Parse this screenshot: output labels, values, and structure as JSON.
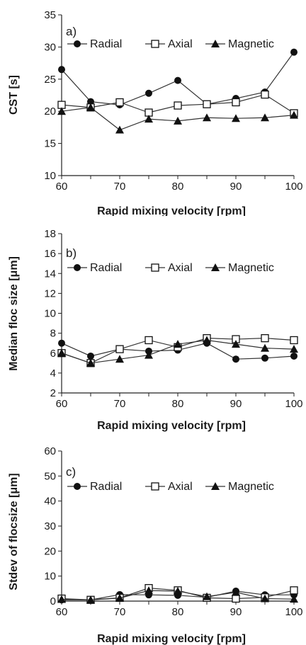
{
  "chart_data": [
    {
      "type": "line",
      "panel_label": "a)",
      "xlabel": "Rapid mixing velocity [rpm]",
      "ylabel": "CST [s]",
      "xlim": [
        60,
        100
      ],
      "ylim": [
        10,
        35
      ],
      "x_ticks": [
        "60",
        "70",
        "80",
        "90",
        "100"
      ],
      "y_ticks": [
        "10",
        "15",
        "20",
        "25",
        "30",
        "35"
      ],
      "legend_position": "top",
      "grid": false,
      "x": [
        60,
        65,
        70,
        75,
        80,
        85,
        90,
        95,
        100
      ],
      "series": [
        {
          "name": "Radial",
          "marker": "filled-circle",
          "values": [
            26.5,
            21.5,
            21.0,
            22.8,
            24.8,
            21.1,
            22.0,
            23.0,
            29.2
          ]
        },
        {
          "name": "Axial",
          "marker": "open-square",
          "values": [
            21.0,
            20.6,
            21.4,
            19.8,
            20.9,
            21.1,
            21.4,
            22.6,
            19.7
          ]
        },
        {
          "name": "Magnetic",
          "marker": "filled-triangle",
          "values": [
            20.0,
            20.6,
            17.1,
            18.8,
            18.5,
            19.0,
            18.9,
            19.0,
            19.4
          ]
        }
      ]
    },
    {
      "type": "line",
      "panel_label": "b)",
      "xlabel": "Rapid mixing velocity [rpm]",
      "ylabel": "Median floc size [μm]",
      "xlim": [
        60,
        100
      ],
      "ylim": [
        2,
        18
      ],
      "x_ticks": [
        "60",
        "70",
        "80",
        "90",
        "100"
      ],
      "y_ticks": [
        "2",
        "4",
        "6",
        "8",
        "10",
        "12",
        "14",
        "16",
        "18"
      ],
      "legend_position": "top",
      "grid": false,
      "x": [
        60,
        65,
        70,
        75,
        80,
        85,
        90,
        95,
        100
      ],
      "series": [
        {
          "name": "Radial",
          "marker": "filled-circle",
          "values": [
            7.0,
            5.7,
            6.4,
            6.2,
            6.3,
            7.0,
            5.4,
            5.5,
            5.7
          ]
        },
        {
          "name": "Axial",
          "marker": "open-square",
          "values": [
            6.0,
            5.0,
            6.4,
            7.3,
            6.6,
            7.5,
            7.4,
            7.5,
            7.3
          ]
        },
        {
          "name": "Magnetic",
          "marker": "filled-triangle",
          "values": [
            6.0,
            5.0,
            5.4,
            5.8,
            6.9,
            7.3,
            6.9,
            6.5,
            6.4
          ]
        }
      ]
    },
    {
      "type": "line",
      "panel_label": "c)",
      "xlabel": "Rapid mixing velocity [rpm]",
      "ylabel": "Stdev of flocsize [μm]",
      "xlim": [
        60,
        100
      ],
      "ylim": [
        0,
        60
      ],
      "x_ticks": [
        "60",
        "70",
        "80",
        "90",
        "100"
      ],
      "y_ticks": [
        "0",
        "10",
        "20",
        "30",
        "40",
        "50",
        "60"
      ],
      "legend_position": "top",
      "grid": false,
      "x": [
        60,
        65,
        70,
        75,
        80,
        85,
        90,
        95,
        100
      ],
      "series": [
        {
          "name": "Radial",
          "marker": "filled-circle",
          "values": [
            0.5,
            0.5,
            2.6,
            2.5,
            2.3,
            1.5,
            4.0,
            2.5,
            2.5
          ]
        },
        {
          "name": "Axial",
          "marker": "open-square",
          "values": [
            1.0,
            0.5,
            1.3,
            5.2,
            4.3,
            1.3,
            1.0,
            1.5,
            4.3
          ]
        },
        {
          "name": "Magnetic",
          "marker": "filled-triangle",
          "values": [
            0.7,
            0.5,
            1.2,
            4.2,
            4.0,
            1.8,
            3.5,
            1.0,
            0.8
          ]
        }
      ]
    }
  ]
}
